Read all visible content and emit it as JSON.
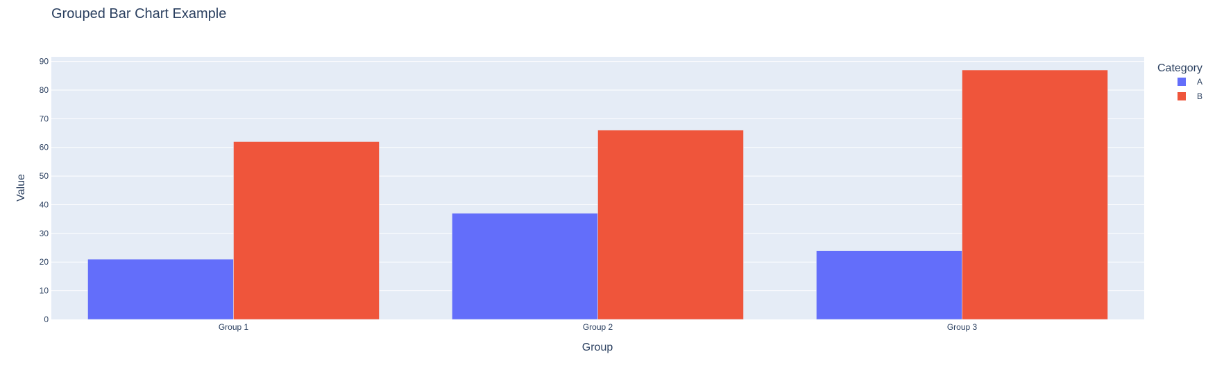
{
  "chart_data": {
    "type": "bar",
    "title": "Grouped Bar Chart Example",
    "xlabel": "Group",
    "ylabel": "Value",
    "categories": [
      "Group 1",
      "Group 2",
      "Group 3"
    ],
    "series": [
      {
        "name": "A",
        "values": [
          21,
          37,
          24
        ],
        "color": "#636efa"
      },
      {
        "name": "B",
        "values": [
          62,
          66,
          87
        ],
        "color": "#ef553b"
      }
    ],
    "ylim": [
      0,
      91.6
    ],
    "yticks": [
      0,
      10,
      20,
      30,
      40,
      50,
      60,
      70,
      80,
      90
    ],
    "grid": true,
    "legend": {
      "title": "Category",
      "placement": "right"
    },
    "colors": {
      "plot_background": "#e5ecf6",
      "gridline": "#ffffff",
      "text": "#2a3f5f"
    }
  }
}
